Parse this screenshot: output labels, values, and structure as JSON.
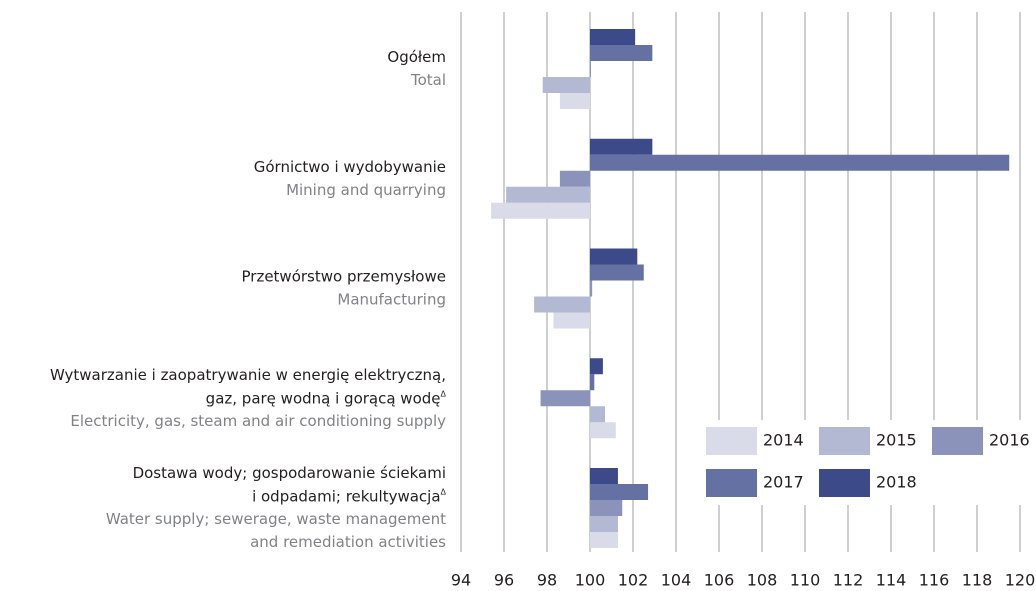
{
  "chart_data": {
    "type": "bar",
    "orientation": "horizontal",
    "categories": [
      {
        "pl": [
          "Ogółem"
        ],
        "en": [
          "Total"
        ]
      },
      {
        "pl": [
          "Górnictwo i wydobywanie"
        ],
        "en": [
          "Mining and quarrying"
        ]
      },
      {
        "pl": [
          "Przetwórstwo przemysłowe"
        ],
        "en": [
          "Manufacturing"
        ]
      },
      {
        "pl": [
          "Wytwarzanie i zaopatrywanie w energię elektryczną,",
          "gaz, parę wodną i gorącą wodęΔ"
        ],
        "en": [
          "Electricity, gas, steam and air conditioning supply"
        ]
      },
      {
        "pl": [
          "Dostawa wody; gospodarowanie ściekami",
          "i odpadami; rekultywacjaΔ"
        ],
        "en": [
          "Water supply; sewerage, waste management",
          "and remediation activities"
        ]
      }
    ],
    "series": [
      {
        "name": "2014",
        "color": "#d9dce8",
        "values": [
          98.6,
          95.4,
          98.3,
          101.2,
          101.3
        ]
      },
      {
        "name": "2015",
        "color": "#b3b8d3",
        "values": [
          97.8,
          96.1,
          97.4,
          100.7,
          101.3
        ]
      },
      {
        "name": "2016",
        "color": "#8c93bb",
        "values": [
          100.0,
          98.6,
          100.1,
          97.7,
          101.5
        ]
      },
      {
        "name": "2017",
        "color": "#6570a3",
        "values": [
          102.9,
          119.5,
          102.5,
          100.2,
          102.7
        ]
      },
      {
        "name": "2018",
        "color": "#3c4a8a",
        "values": [
          102.1,
          102.9,
          102.2,
          100.6,
          101.3
        ]
      }
    ],
    "base": 100,
    "xlim": [
      94,
      120
    ],
    "xticks": [
      94,
      96,
      98,
      100,
      102,
      104,
      106,
      108,
      110,
      112,
      114,
      116,
      118,
      120
    ],
    "grid": true,
    "legend": "lower right"
  }
}
